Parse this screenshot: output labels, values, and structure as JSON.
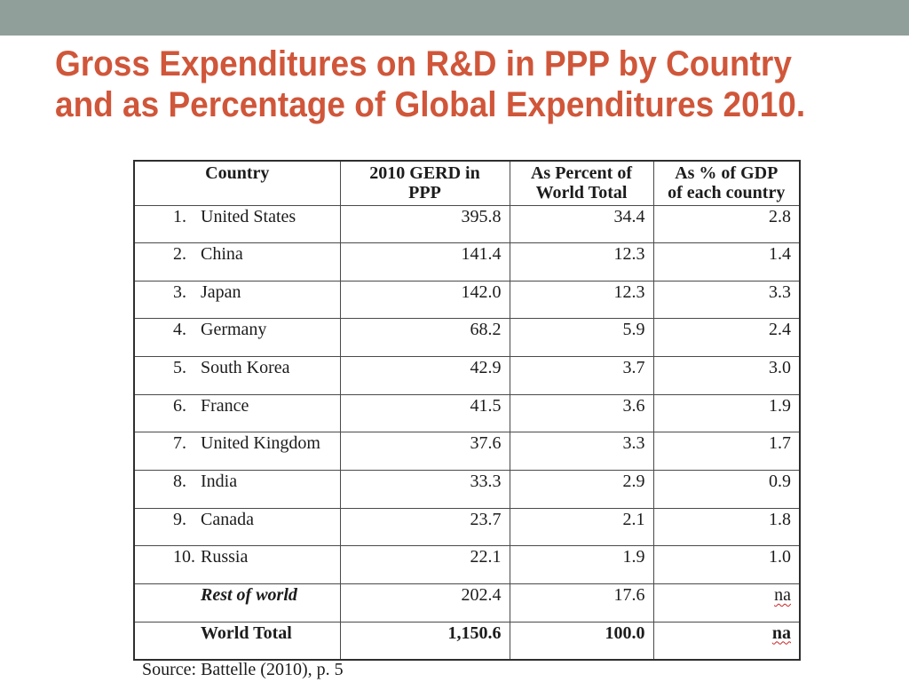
{
  "slide": {
    "title": [
      "Gross Expenditures on R&D in PPP by Country",
      "and as Percentage of Global Expenditures 2010."
    ],
    "source": "Source: Battelle (2010), p. 5"
  },
  "table": {
    "headers": {
      "country": "Country",
      "gerd": [
        "2010 GERD in",
        "PPP"
      ],
      "pct_world": [
        "As Percent of",
        "World Total"
      ],
      "pct_gdp": [
        "As % of GDP",
        "of each country"
      ]
    },
    "rows": [
      {
        "rank": "1.",
        "country": "United States",
        "gerd": "395.8",
        "pct_world": "34.4",
        "pct_gdp": "2.8"
      },
      {
        "rank": "2.",
        "country": "China",
        "gerd": "141.4",
        "pct_world": "12.3",
        "pct_gdp": "1.4"
      },
      {
        "rank": "3.",
        "country": "Japan",
        "gerd": "142.0",
        "pct_world": "12.3",
        "pct_gdp": "3.3"
      },
      {
        "rank": "4.",
        "country": "Germany",
        "gerd": "68.2",
        "pct_world": "5.9",
        "pct_gdp": "2.4"
      },
      {
        "rank": "5.",
        "country": "South Korea",
        "gerd": "42.9",
        "pct_world": "3.7",
        "pct_gdp": "3.0"
      },
      {
        "rank": "6.",
        "country": "France",
        "gerd": "41.5",
        "pct_world": "3.6",
        "pct_gdp": "1.9"
      },
      {
        "rank": "7.",
        "country": "United Kingdom",
        "gerd": "37.6",
        "pct_world": "3.3",
        "pct_gdp": "1.7"
      },
      {
        "rank": "8.",
        "country": "India",
        "gerd": "33.3",
        "pct_world": "2.9",
        "pct_gdp": "0.9"
      },
      {
        "rank": "9.",
        "country": "Canada",
        "gerd": "23.7",
        "pct_world": "2.1",
        "pct_gdp": "1.8"
      },
      {
        "rank": "10.",
        "country": "Russia",
        "gerd": "22.1",
        "pct_world": "1.9",
        "pct_gdp": "1.0"
      }
    ],
    "rest_of_world": {
      "label": "Rest of world",
      "gerd": "202.4",
      "pct_world": "17.6",
      "pct_gdp": "na"
    },
    "world_total": {
      "label": "World Total",
      "gerd": "1,150.6",
      "pct_world": "100.0",
      "pct_gdp": "na"
    }
  },
  "colors": {
    "top_bar": "#919f9a",
    "title": "#d0563a",
    "spellcheck_underline": "#cc2222"
  }
}
